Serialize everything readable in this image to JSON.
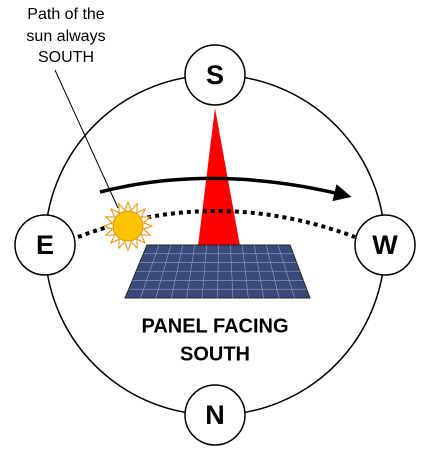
{
  "annotation": {
    "lines": [
      "Path of the",
      "sun always",
      "SOUTH"
    ]
  },
  "compass": {
    "south": "S",
    "east": "E",
    "west": "W",
    "north": "N"
  },
  "panel_label": {
    "lines": [
      "PANEL FACING",
      "SOUTH"
    ]
  }
}
